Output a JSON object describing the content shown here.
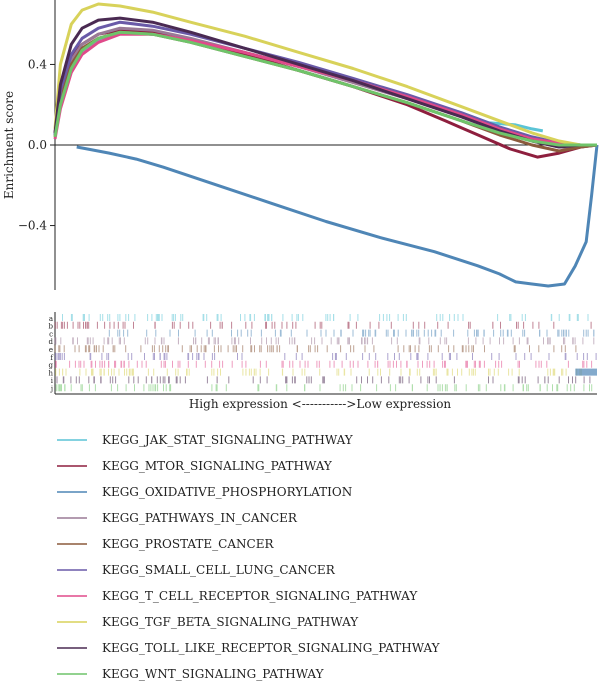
{
  "chart_data": {
    "type": "line",
    "ylabel": "Enrichment score",
    "y_ticks": [
      "0.4",
      "0.0",
      "−0.4"
    ],
    "y_tick_values": [
      0.4,
      0.0,
      -0.4
    ],
    "ylim": [
      -0.72,
      0.72
    ],
    "xlim": [
      0,
      100
    ],
    "grid": false,
    "legend_placement": "bottom",
    "axis_note": "High expression <----------->Low expression",
    "rug_row_labels": [
      "a",
      "b",
      "c",
      "d",
      "e",
      "f",
      "g",
      "h",
      "i",
      "j"
    ],
    "series": [
      {
        "name": "KEGG_JAK_STAT_SIGNALING_PATHWAY",
        "color": "#5bc4d6",
        "x": [
          0,
          1,
          3,
          5,
          8,
          12,
          18,
          25,
          35,
          45,
          55,
          65,
          75,
          80,
          85,
          88,
          90
        ],
        "y": [
          0.05,
          0.2,
          0.38,
          0.46,
          0.52,
          0.56,
          0.55,
          0.52,
          0.46,
          0.39,
          0.32,
          0.24,
          0.16,
          0.11,
          0.1,
          0.08,
          0.07
        ]
      },
      {
        "name": "KEGG_MTOR_SIGNALING_PATHWAY",
        "color": "#8e1f3e",
        "x": [
          0,
          1,
          3,
          5,
          8,
          12,
          18,
          25,
          35,
          45,
          55,
          65,
          72,
          78,
          84,
          89,
          93,
          97,
          100
        ],
        "y": [
          0.06,
          0.28,
          0.44,
          0.5,
          0.55,
          0.57,
          0.56,
          0.52,
          0.45,
          0.37,
          0.29,
          0.2,
          0.12,
          0.05,
          -0.02,
          -0.06,
          -0.04,
          -0.01,
          0.0
        ]
      },
      {
        "name": "KEGG_OXIDATIVE_PHOSPHORYLATION",
        "color": "#4f86b6",
        "x": [
          4,
          6,
          10,
          15,
          20,
          30,
          40,
          50,
          60,
          70,
          78,
          82,
          85,
          88,
          91,
          94,
          96,
          98,
          99,
          100
        ],
        "y": [
          -0.01,
          -0.02,
          -0.04,
          -0.07,
          -0.11,
          -0.2,
          -0.29,
          -0.38,
          -0.46,
          -0.53,
          -0.6,
          -0.64,
          -0.68,
          -0.69,
          -0.7,
          -0.69,
          -0.6,
          -0.48,
          -0.25,
          0.0
        ]
      },
      {
        "name": "KEGG_PATHWAYS_IN_CANCER",
        "color": "#9a7a96",
        "x": [
          0,
          1,
          3,
          5,
          8,
          12,
          18,
          25,
          35,
          45,
          55,
          65,
          75,
          82,
          88,
          93,
          97,
          100
        ],
        "y": [
          0.05,
          0.25,
          0.42,
          0.5,
          0.55,
          0.58,
          0.57,
          0.53,
          0.46,
          0.39,
          0.31,
          0.23,
          0.14,
          0.07,
          0.02,
          -0.01,
          -0.01,
          0.0
        ]
      },
      {
        "name": "KEGG_PROSTATE_CANCER",
        "color": "#8b5a3c",
        "x": [
          0,
          1,
          3,
          5,
          8,
          12,
          18,
          25,
          35,
          45,
          55,
          65,
          75,
          82,
          88,
          93,
          97,
          100
        ],
        "y": [
          0.04,
          0.22,
          0.4,
          0.48,
          0.53,
          0.56,
          0.55,
          0.51,
          0.44,
          0.37,
          0.29,
          0.21,
          0.12,
          0.05,
          0.0,
          -0.03,
          -0.01,
          0.0
        ]
      },
      {
        "name": "KEGG_SMALL_CELL_LUNG_CANCER",
        "color": "#6a5aa8",
        "x": [
          0,
          1,
          3,
          5,
          8,
          12,
          18,
          25,
          35,
          45,
          55,
          65,
          75,
          82,
          88,
          93,
          97,
          100
        ],
        "y": [
          0.05,
          0.27,
          0.45,
          0.53,
          0.58,
          0.61,
          0.59,
          0.55,
          0.48,
          0.41,
          0.33,
          0.25,
          0.16,
          0.09,
          0.04,
          0.01,
          0.0,
          0.0
        ]
      },
      {
        "name": "KEGG_T_CELL_RECEPTOR_SIGNALING_PATHWAY",
        "color": "#e04a8a",
        "x": [
          0,
          1,
          3,
          5,
          8,
          12,
          18,
          25,
          35,
          45,
          55,
          65,
          75,
          82,
          88,
          93,
          97,
          100
        ],
        "y": [
          0.03,
          0.18,
          0.36,
          0.45,
          0.51,
          0.55,
          0.55,
          0.52,
          0.46,
          0.39,
          0.32,
          0.24,
          0.15,
          0.08,
          0.03,
          0.01,
          0.0,
          0.0
        ]
      },
      {
        "name": "KEGG_TGF_BETA_SIGNALING_PATHWAY",
        "color": "#d8d25a",
        "x": [
          0,
          1,
          3,
          5,
          8,
          12,
          18,
          25,
          35,
          45,
          55,
          65,
          75,
          82,
          88,
          93,
          97,
          100
        ],
        "y": [
          0.08,
          0.4,
          0.6,
          0.67,
          0.7,
          0.69,
          0.66,
          0.61,
          0.54,
          0.46,
          0.38,
          0.29,
          0.19,
          0.12,
          0.06,
          0.02,
          0.0,
          0.0
        ]
      },
      {
        "name": "KEGG_TOLL_LIKE_RECEPTOR_SIGNALING_PATHWAY",
        "color": "#4a2a52",
        "x": [
          0,
          1,
          3,
          5,
          8,
          12,
          18,
          25,
          35,
          45,
          55,
          65,
          75,
          82,
          88,
          93,
          97,
          100
        ],
        "y": [
          0.06,
          0.3,
          0.5,
          0.58,
          0.62,
          0.63,
          0.61,
          0.56,
          0.48,
          0.4,
          0.32,
          0.23,
          0.14,
          0.07,
          0.02,
          -0.01,
          0.0,
          0.0
        ]
      },
      {
        "name": "KEGG_WNT_SIGNALING_PATHWAY",
        "color": "#6fc46a",
        "x": [
          0,
          1,
          3,
          5,
          8,
          12,
          18,
          25,
          35,
          45,
          55,
          65,
          75,
          82,
          88,
          93,
          97,
          100
        ],
        "y": [
          0.04,
          0.2,
          0.38,
          0.47,
          0.53,
          0.56,
          0.55,
          0.51,
          0.44,
          0.37,
          0.29,
          0.21,
          0.12,
          0.06,
          0.02,
          0.0,
          0.0,
          0.0
        ]
      }
    ]
  }
}
